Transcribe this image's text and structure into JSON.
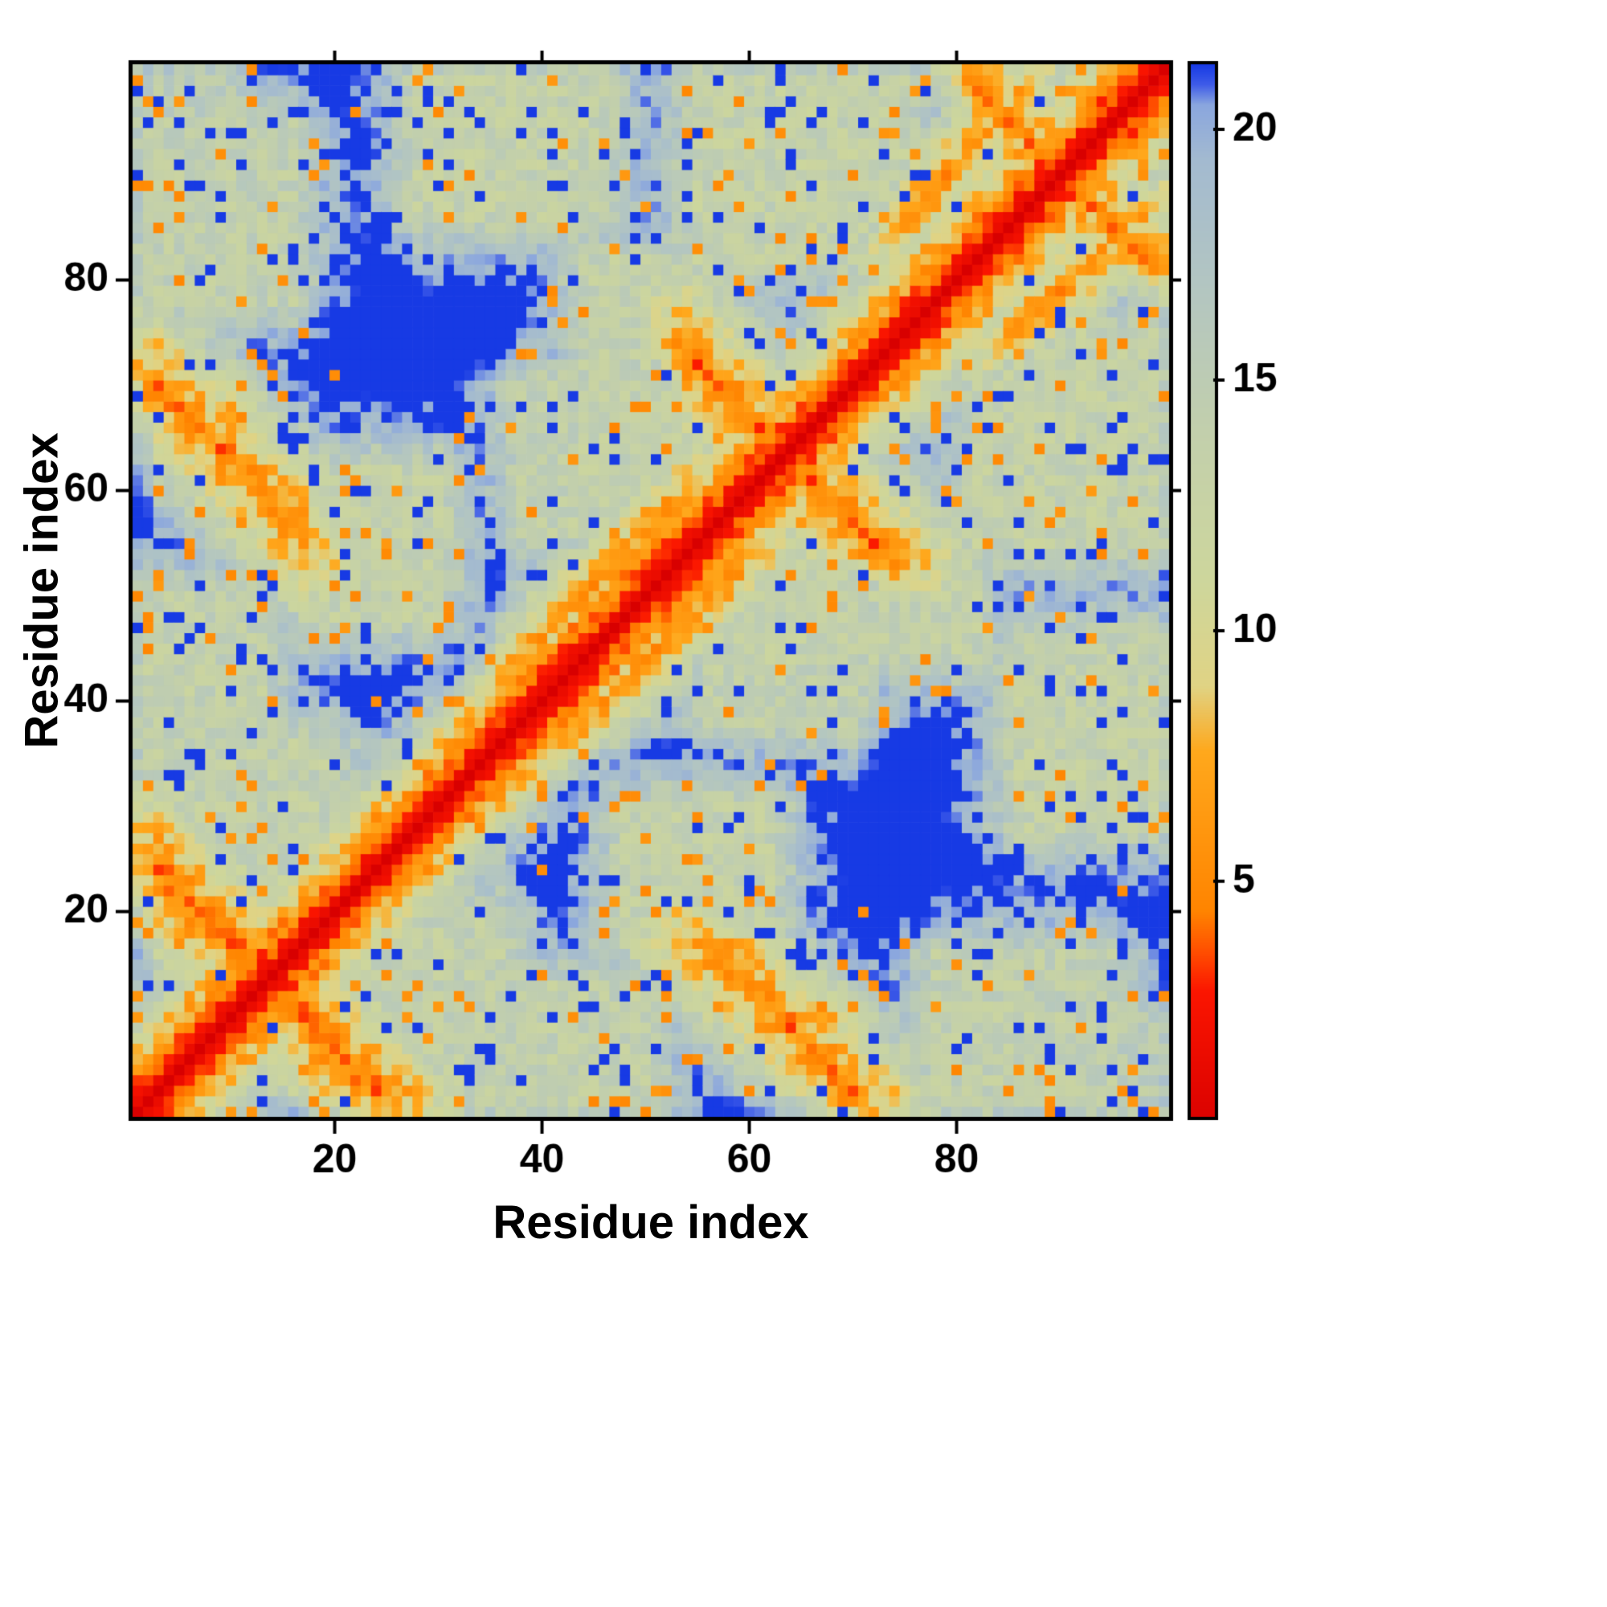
{
  "figure": {
    "background": "#ffffff"
  },
  "chart_data": {
    "type": "heatmap",
    "title": "",
    "xlabel": "Residue index",
    "ylabel": "Residue index",
    "n_residues": 100,
    "x_ticks": [
      20,
      40,
      60,
      80
    ],
    "y_ticks": [
      20,
      40,
      60,
      80
    ],
    "axis_range": [
      1,
      100
    ],
    "grid": false,
    "legend": "colorbar-right",
    "colorbar": {
      "ticks": [
        5,
        10,
        15,
        20
      ],
      "min": 0.3,
      "max": 21.3
    },
    "colormap_stops": [
      [
        0.0,
        "#d80000"
      ],
      [
        2.8,
        "#fb1500"
      ],
      [
        3.6,
        "#ff4e00"
      ],
      [
        4.4,
        "#ff8400"
      ],
      [
        7.6,
        "#ffa81c"
      ],
      [
        8.9,
        "#e0d384"
      ],
      [
        11.0,
        "#cdd69c"
      ],
      [
        14.0,
        "#c2cfac"
      ],
      [
        17.0,
        "#b2c5c2"
      ],
      [
        19.4,
        "#a3bad0"
      ],
      [
        20.5,
        "#8aa6de"
      ],
      [
        20.9,
        "#3f5ce8"
      ],
      [
        21.3,
        "#173ae4"
      ]
    ],
    "matrix_model": {
      "comment_visible_content": "symmetric residue-residue distance map, red main diagonal, anti-parallel contact streaks and pale speckled contact clouds on blue background",
      "base_slope": 1.55,
      "anti_features": [
        {
          "sum": 27,
          "lo": 3,
          "hi": 13,
          "d": 4.3
        },
        {
          "sum": 73,
          "lo": 3,
          "hi": 17,
          "d": 5.0
        },
        {
          "sum": 127,
          "lo": 54,
          "hi": 63,
          "d": 4.6
        },
        {
          "sum": 180,
          "lo": 82,
          "hi": 89,
          "d": 5.4
        }
      ],
      "para_features": [
        {
          "k": 6,
          "lo": 37,
          "hi": 54,
          "d": 6.2
        },
        {
          "k": 11,
          "lo": 75,
          "hi": 86,
          "d": 6.0
        }
      ],
      "clouds": [
        {
          "i0": 28,
          "i1": 50,
          "j0": 2,
          "j1": 13,
          "d": 13.8
        },
        {
          "i0": 3,
          "i1": 20,
          "j0": 22,
          "j1": 36,
          "d": 13.8
        },
        {
          "i0": 18,
          "i1": 30,
          "j0": 48,
          "j1": 62,
          "d": 13.6
        },
        {
          "i0": 38,
          "i1": 55,
          "j0": 56,
          "j1": 70,
          "d": 13.8
        },
        {
          "i0": 44,
          "i1": 58,
          "j0": 70,
          "j1": 82,
          "d": 13.8
        },
        {
          "i0": 28,
          "i1": 46,
          "j0": 86,
          "j1": 99,
          "d": 13.5
        },
        {
          "i0": 55,
          "i1": 75,
          "j0": 82,
          "j1": 99,
          "d": 13.4
        },
        {
          "i0": 2,
          "i1": 16,
          "j0": 78,
          "j1": 95,
          "d": 14.0
        },
        {
          "i0": 92,
          "i1": 99,
          "j0": 1,
          "j1": 10,
          "d": 15.0
        }
      ],
      "noise": {
        "seed": 7,
        "jitter": 2.3,
        "orange_prob": 0.045,
        "blue_prob": 0.065
      }
    }
  }
}
